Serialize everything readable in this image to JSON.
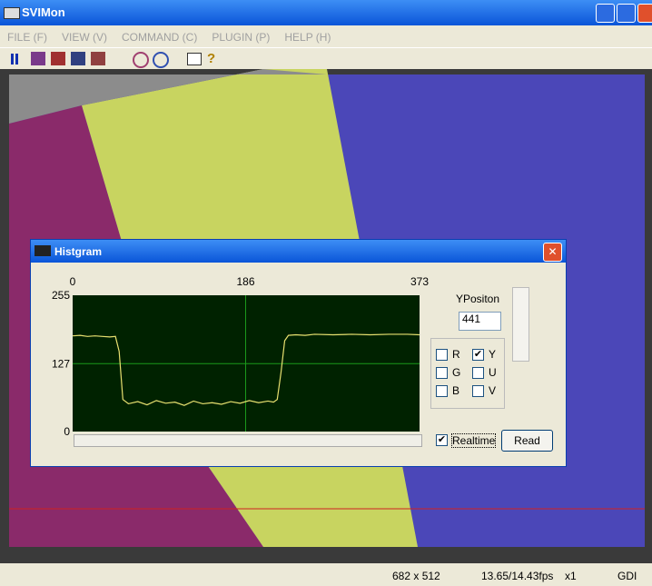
{
  "window": {
    "title": "SVIMon",
    "menu": [
      "FILE (F)",
      "VIEW (V)",
      "COMMAND (C)",
      "PLUGIN (P)",
      "HELP (H)"
    ],
    "status": [
      "682 x 512",
      "13.65/14.43fps",
      "x1",
      "GDI"
    ]
  },
  "dialog": {
    "title": "Histgram",
    "yposition_label": "YPositon",
    "yposition_value": "441",
    "channels": [
      {
        "label": "R",
        "checked": false
      },
      {
        "label": "Y",
        "checked": true
      },
      {
        "label": "G",
        "checked": false
      },
      {
        "label": "U",
        "checked": false
      },
      {
        "label": "B",
        "checked": false
      },
      {
        "label": "V",
        "checked": false
      }
    ],
    "realtime": {
      "label": "Realtime",
      "checked": true
    },
    "read_button": "Read",
    "plot": {
      "type": "line",
      "color": "#e8e070",
      "x": [
        0,
        8,
        16,
        24,
        32,
        40,
        46,
        50,
        54,
        60,
        70,
        80,
        90,
        100,
        110,
        120,
        130,
        140,
        150,
        160,
        170,
        180,
        190,
        200,
        210,
        216,
        220,
        224,
        228,
        232,
        240,
        250,
        260,
        280,
        300,
        320,
        340,
        360,
        373
      ],
      "values": [
        179,
        180,
        178,
        179,
        178,
        177,
        178,
        150,
        60,
        52,
        56,
        50,
        58,
        53,
        55,
        49,
        57,
        52,
        54,
        51,
        56,
        53,
        58,
        54,
        57,
        55,
        60,
        110,
        170,
        180,
        181,
        180,
        182,
        181,
        182,
        181,
        182,
        182,
        181
      ],
      "xlim": [
        0,
        373
      ],
      "ylim": [
        0,
        255
      ],
      "xticks": [
        0,
        186,
        373
      ],
      "yticks": [
        0,
        127,
        255
      ],
      "grid": true
    }
  }
}
